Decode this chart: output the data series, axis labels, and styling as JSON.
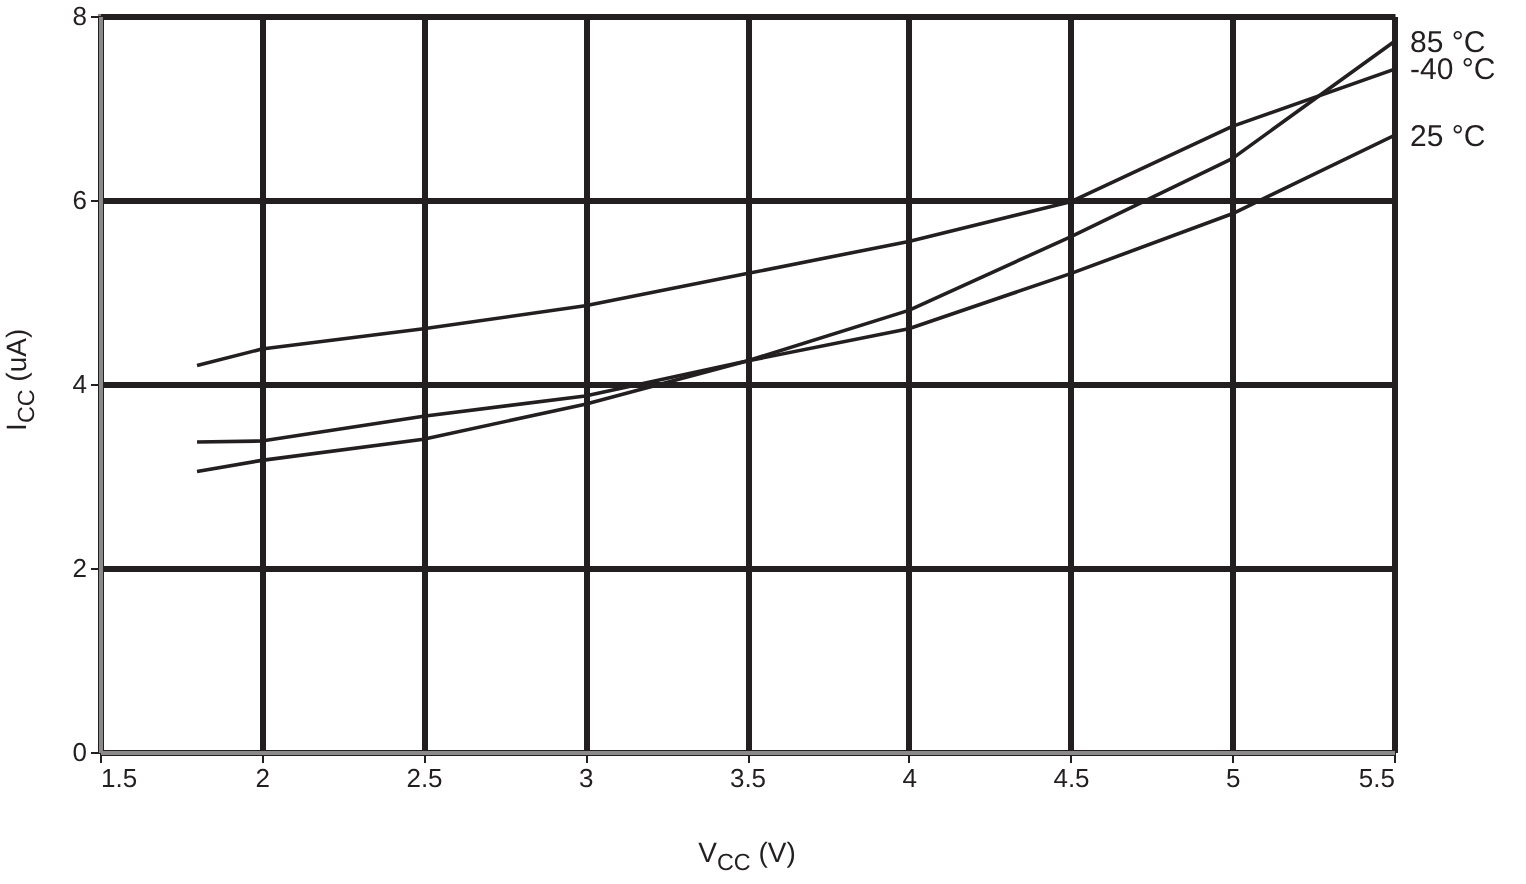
{
  "chart_data": {
    "type": "line",
    "xlabel": "V$_{CC}$ (V)",
    "ylabel": "I$_{CC}$ (uA)",
    "x": [
      1.8,
      2,
      2.5,
      3,
      3.5,
      4,
      4.5,
      5,
      5.5
    ],
    "series": [
      {
        "name": "85 °C",
        "color": "#231f20",
        "values": [
          3.37,
          3.38,
          3.65,
          3.87,
          4.25,
          4.8,
          5.6,
          6.45,
          7.72
        ]
      },
      {
        "name": "-40 °C",
        "color": "#231f20",
        "values": [
          4.2,
          4.38,
          4.6,
          4.85,
          5.2,
          5.55,
          5.98,
          6.8,
          7.42
        ]
      },
      {
        "name": "25 °C",
        "color": "#231f20",
        "values": [
          3.05,
          3.17,
          3.4,
          3.78,
          4.25,
          4.6,
          5.2,
          5.85,
          6.7
        ]
      }
    ],
    "xlim": [
      1.5,
      5.5
    ],
    "xticks": [
      1.5,
      2,
      2.5,
      3,
      3.5,
      4,
      4.5,
      5,
      5.5
    ],
    "ylim": [
      0,
      8
    ],
    "yticks": [
      0,
      2,
      4,
      6,
      8
    ],
    "grid": true,
    "marker": "none",
    "line_style": "solid"
  }
}
